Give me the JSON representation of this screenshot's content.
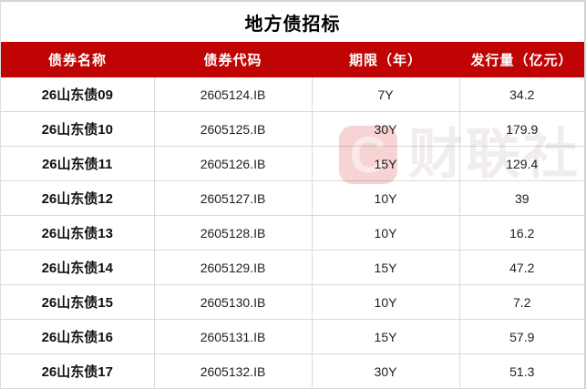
{
  "title": "地方债招标",
  "chart_data": {
    "type": "table",
    "title": "地方债招标",
    "columns": [
      "债券名称",
      "债券代码",
      "期限（年）",
      "发行量（亿元）"
    ],
    "rows": [
      [
        "26山东债09",
        "2605124.IB",
        "7Y",
        "34.2"
      ],
      [
        "26山东债10",
        "2605125.IB",
        "30Y",
        "179.9"
      ],
      [
        "26山东债11",
        "2605126.IB",
        "15Y",
        "129.4"
      ],
      [
        "26山东债12",
        "2605127.IB",
        "10Y",
        "39"
      ],
      [
        "26山东债13",
        "2605128.IB",
        "10Y",
        "16.2"
      ],
      [
        "26山东债14",
        "2605129.IB",
        "15Y",
        "47.2"
      ],
      [
        "26山东债15",
        "2605130.IB",
        "10Y",
        "7.2"
      ],
      [
        "26山东债16",
        "2605131.IB",
        "15Y",
        "57.9"
      ],
      [
        "26山东债17",
        "2605132.IB",
        "30Y",
        "51.3"
      ]
    ]
  },
  "watermark": {
    "logo_letter": "C",
    "brand_text": "财联社"
  },
  "colors": {
    "header_bg": "#c00404",
    "header_text": "#ffffff",
    "row_border": "#d9d9d9",
    "frame_border": "#d3d3d3",
    "watermark_logo_bg": "#f7d3d3",
    "watermark_text": "#f1eded"
  }
}
